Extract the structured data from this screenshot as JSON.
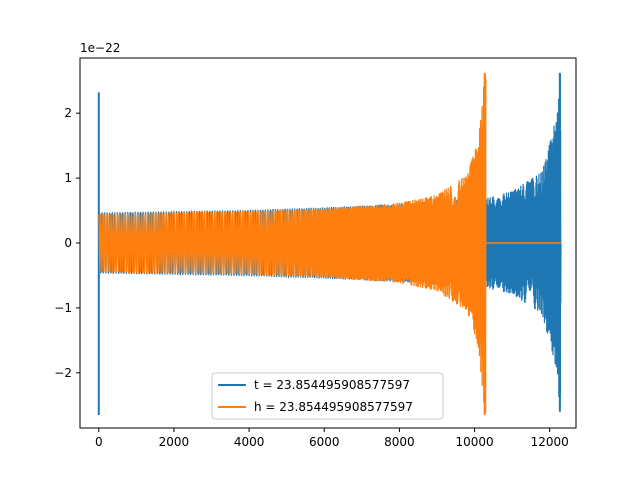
{
  "chart_data": {
    "type": "line",
    "title": "",
    "xlabel": "",
    "ylabel": "",
    "y_scale_label": "1e−22",
    "xlim": [
      -500,
      12700
    ],
    "ylim": [
      -2.85,
      2.85
    ],
    "xticks": [
      0,
      2000,
      4000,
      6000,
      8000,
      10000,
      12000
    ],
    "xtick_labels": [
      "0",
      "2000",
      "4000",
      "6000",
      "8000",
      "10000",
      "12000"
    ],
    "yticks": [
      -2,
      -1,
      0,
      1,
      2
    ],
    "ytick_labels": [
      "−2",
      "−1",
      "0",
      "1",
      "2"
    ],
    "legend_position": "lower-center",
    "grid": false,
    "series": [
      {
        "name": "t = 23.854495908577597",
        "color": "#1f77b4",
        "description_points": {
          "start_spike": {
            "x": 0,
            "ymin": -2.65,
            "ymax": 2.32
          },
          "envelope": [
            {
              "x": 0,
              "amp": 0.47
            },
            {
              "x": 2000,
              "amp": 0.49
            },
            {
              "x": 4000,
              "amp": 0.51
            },
            {
              "x": 6000,
              "amp": 0.55
            },
            {
              "x": 8000,
              "amp": 0.6
            },
            {
              "x": 10000,
              "amp": 0.68
            },
            {
              "x": 10300,
              "amp": 0.69
            },
            {
              "x": 11000,
              "amp": 0.8
            },
            {
              "x": 11800,
              "amp": 1.1
            },
            {
              "x": 12200,
              "amp": 2.0
            },
            {
              "x": 12270,
              "amp": 2.62
            }
          ],
          "end_x": 12300
        }
      },
      {
        "name": "h = 23.854495908577597",
        "color": "#ff7f0e",
        "description_points": {
          "envelope": [
            {
              "x": 0,
              "amp": 0.45
            },
            {
              "x": 2000,
              "amp": 0.47
            },
            {
              "x": 4000,
              "amp": 0.49
            },
            {
              "x": 6000,
              "amp": 0.53
            },
            {
              "x": 8000,
              "amp": 0.62
            },
            {
              "x": 9000,
              "amp": 0.74
            },
            {
              "x": 9800,
              "amp": 1.05
            },
            {
              "x": 10100,
              "amp": 1.6
            },
            {
              "x": 10270,
              "amp": 2.62
            }
          ],
          "end_x": 10300,
          "flat_to_x": 12300,
          "flat_value": 0.0
        }
      }
    ]
  }
}
